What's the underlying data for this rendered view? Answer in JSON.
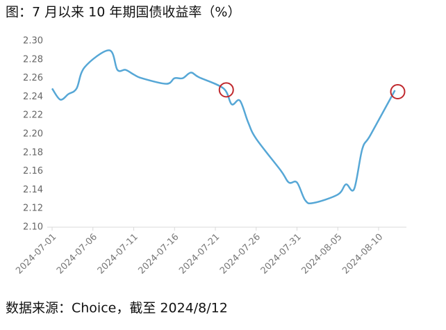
{
  "chart_data": {
    "type": "line",
    "title": "图：7 月以来 10 年期国债收益率（%）",
    "source": "数据来源：Choice，截至 2024/8/12",
    "x": [
      "2024-07-01",
      "2024-07-02",
      "2024-07-03",
      "2024-07-04",
      "2024-07-05",
      "2024-07-08",
      "2024-07-09",
      "2024-07-10",
      "2024-07-11",
      "2024-07-12",
      "2024-07-15",
      "2024-07-16",
      "2024-07-17",
      "2024-07-18",
      "2024-07-19",
      "2024-07-22",
      "2024-07-23",
      "2024-07-24",
      "2024-07-25",
      "2024-07-26",
      "2024-07-29",
      "2024-07-30",
      "2024-07-31",
      "2024-08-01",
      "2024-08-02",
      "2024-08-05",
      "2024-08-06",
      "2024-08-07",
      "2024-08-08",
      "2024-08-09",
      "2024-08-12"
    ],
    "series": [
      {
        "name": "10年期国债收益率",
        "color": "#56a7d6",
        "values": [
          2.249,
          2.237,
          2.243,
          2.249,
          2.272,
          2.29,
          2.269,
          2.269,
          2.264,
          2.26,
          2.254,
          2.26,
          2.26,
          2.266,
          2.261,
          2.249,
          2.232,
          2.236,
          2.213,
          2.195,
          2.161,
          2.148,
          2.148,
          2.129,
          2.126,
          2.135,
          2.146,
          2.141,
          2.184,
          2.199,
          2.247
        ]
      }
    ],
    "xticks": [
      "2024-07-01",
      "2024-07-06",
      "2024-07-11",
      "2024-07-16",
      "2024-07-21",
      "2024-07-26",
      "2024-07-31",
      "2024-08-05",
      "2024-08-10"
    ],
    "xlim": [
      "2024-07-01",
      "2024-08-12"
    ],
    "ylim": [
      2.1,
      2.3
    ],
    "yticks": [
      {
        "value": 2.1,
        "label": "2.10"
      },
      2.12,
      2.14,
      2.16,
      2.18,
      {
        "value": 2.2,
        "label": "2.20"
      },
      2.22,
      2.24,
      2.26,
      2.28,
      {
        "value": 2.3,
        "label": "2.30"
      }
    ],
    "grid": false,
    "highlight_color": "#c0282d"
  }
}
